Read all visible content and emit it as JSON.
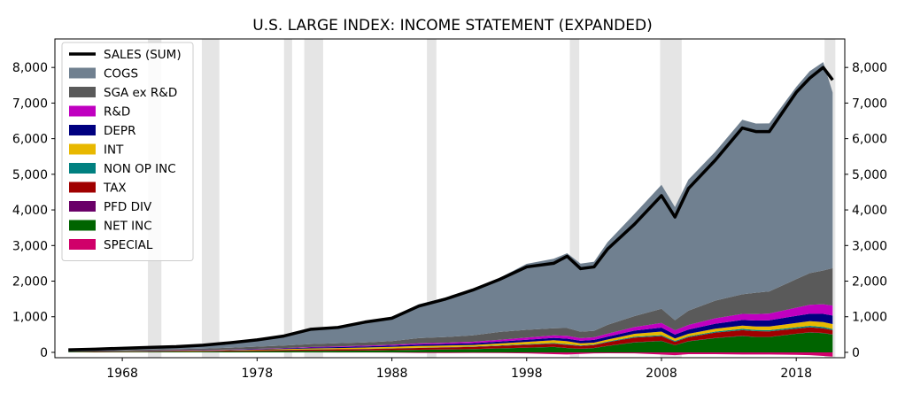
{
  "chart_data": {
    "type": "area",
    "title": "U.S. LARGE INDEX: INCOME STATEMENT (EXPANDED)",
    "xlabel": "",
    "ylabel": "",
    "xlim": [
      1963,
      2021.6
    ],
    "ylim": [
      -150,
      8800
    ],
    "x_ticks": [
      1968,
      1978,
      1988,
      1998,
      2008,
      2018
    ],
    "x_tick_labels": [
      "1968",
      "1978",
      "1988",
      "1998",
      "2008",
      "2018"
    ],
    "y_ticks": [
      0,
      1000,
      2000,
      3000,
      4000,
      5000,
      6000,
      7000,
      8000
    ],
    "y_tick_labels": [
      "0",
      "1,000",
      "2,000",
      "3,000",
      "4,000",
      "5,000",
      "6,000",
      "7,000",
      "8,000"
    ],
    "right_axis_mirror": true,
    "grid": false,
    "legend_position": "top-left",
    "recession_shading": [
      [
        1969.9,
        1970.9
      ],
      [
        1973.9,
        1975.2
      ],
      [
        1980.0,
        1980.6
      ],
      [
        1981.5,
        1982.9
      ],
      [
        1990.6,
        1991.3
      ],
      [
        2001.2,
        2001.9
      ],
      [
        2007.9,
        2009.5
      ],
      [
        2020.1,
        2020.9
      ]
    ],
    "shading_color": "#e5e5e5",
    "x": [
      1964,
      1966,
      1968,
      1970,
      1972,
      1974,
      1976,
      1978,
      1980,
      1982,
      1984,
      1986,
      1988,
      1990,
      1992,
      1994,
      1996,
      1998,
      2000,
      2001,
      2002,
      2003,
      2004,
      2006,
      2008,
      2009,
      2010,
      2012,
      2014,
      2015,
      2016,
      2018,
      2019,
      2020,
      2020.7
    ],
    "series": [
      {
        "name": "SALES (SUM)",
        "kind": "line",
        "color": "#000000",
        "values": [
          70,
          90,
          115,
          140,
          160,
          200,
          270,
          350,
          460,
          650,
          700,
          850,
          960,
          1300,
          1500,
          1750,
          2050,
          2400,
          2500,
          2700,
          2350,
          2400,
          2900,
          3600,
          4400,
          3800,
          4600,
          5400,
          6300,
          6200,
          6200,
          7300,
          7700,
          8000,
          7650
        ]
      },
      {
        "name": "COGS",
        "kind": "area",
        "color": "#708090",
        "values": [
          30,
          40,
          50,
          60,
          70,
          90,
          140,
          190,
          270,
          420,
          450,
          590,
          680,
          950,
          1110,
          1300,
          1520,
          1850,
          1950,
          2100,
          1910,
          1940,
          2320,
          2870,
          3480,
          3180,
          3680,
          4180,
          4900,
          4750,
          4720,
          5400,
          5670,
          5850,
          4930
        ]
      },
      {
        "name": "SGA ex R&D",
        "kind": "area",
        "color": "#5a5a5a",
        "values": [
          15,
          20,
          25,
          30,
          35,
          40,
          50,
          60,
          70,
          80,
          90,
          90,
          100,
          150,
          160,
          180,
          220,
          220,
          200,
          220,
          180,
          180,
          250,
          310,
          400,
          280,
          400,
          500,
          550,
          600,
          620,
          800,
          890,
          950,
          1050
        ]
      },
      {
        "name": "R&D",
        "kind": "area",
        "color": "#c000c0",
        "values": [
          1,
          2,
          2,
          3,
          4,
          5,
          6,
          8,
          10,
          15,
          18,
          22,
          25,
          30,
          35,
          40,
          50,
          60,
          70,
          80,
          75,
          75,
          85,
          100,
          130,
          120,
          130,
          150,
          170,
          180,
          190,
          230,
          250,
          270,
          280
        ]
      },
      {
        "name": "DEPR",
        "kind": "area",
        "color": "#000080",
        "values": [
          4,
          5,
          6,
          7,
          8,
          10,
          12,
          15,
          20,
          25,
          28,
          32,
          36,
          40,
          45,
          50,
          55,
          60,
          65,
          70,
          72,
          75,
          80,
          90,
          110,
          110,
          120,
          140,
          160,
          170,
          175,
          200,
          210,
          230,
          240
        ]
      },
      {
        "name": "INT",
        "kind": "area",
        "color": "#e8b800",
        "values": [
          2,
          3,
          4,
          5,
          6,
          8,
          10,
          14,
          20,
          30,
          30,
          35,
          40,
          50,
          45,
          45,
          55,
          65,
          80,
          85,
          60,
          55,
          55,
          80,
          100,
          70,
          70,
          80,
          90,
          95,
          100,
          120,
          130,
          135,
          140
        ]
      },
      {
        "name": "NON OP INC",
        "kind": "area",
        "color": "#008080",
        "values": [
          1,
          1,
          1,
          2,
          2,
          2,
          3,
          3,
          4,
          5,
          5,
          6,
          6,
          8,
          8,
          10,
          12,
          15,
          18,
          20,
          15,
          15,
          20,
          25,
          30,
          25,
          25,
          30,
          35,
          35,
          35,
          40,
          40,
          40,
          30
        ]
      },
      {
        "name": "TAX",
        "kind": "area",
        "color": "#a00000",
        "values": [
          8,
          10,
          12,
          14,
          16,
          18,
          22,
          26,
          30,
          35,
          38,
          42,
          46,
          50,
          55,
          60,
          70,
          80,
          90,
          85,
          75,
          80,
          100,
          130,
          130,
          90,
          110,
          150,
          160,
          160,
          155,
          140,
          140,
          130,
          120
        ]
      },
      {
        "name": "PFD DIV",
        "kind": "area",
        "color": "#6a0068",
        "values": [
          1,
          1,
          1,
          1,
          1,
          1,
          1,
          2,
          2,
          2,
          2,
          2,
          2,
          3,
          3,
          3,
          3,
          4,
          4,
          4,
          4,
          4,
          4,
          5,
          5,
          5,
          5,
          5,
          5,
          5,
          5,
          5,
          5,
          5,
          5
        ]
      },
      {
        "name": "NET INC",
        "kind": "area",
        "color": "#006400",
        "values": [
          10,
          12,
          15,
          18,
          20,
          22,
          26,
          32,
          35,
          40,
          45,
          50,
          60,
          70,
          80,
          90,
          110,
          130,
          150,
          120,
          100,
          120,
          180,
          280,
          320,
          200,
          310,
          400,
          460,
          430,
          430,
          520,
          560,
          540,
          500
        ]
      },
      {
        "name": "SPECIAL",
        "kind": "area",
        "color": "#d0006a",
        "values": [
          0,
          0,
          0,
          0,
          0,
          0,
          0,
          0,
          0,
          -2,
          -3,
          -5,
          -8,
          -15,
          -20,
          -15,
          -20,
          -30,
          -50,
          -60,
          -45,
          -30,
          -25,
          -30,
          -60,
          -80,
          -50,
          -50,
          -60,
          -60,
          -60,
          -70,
          -80,
          -100,
          -120
        ]
      }
    ]
  }
}
